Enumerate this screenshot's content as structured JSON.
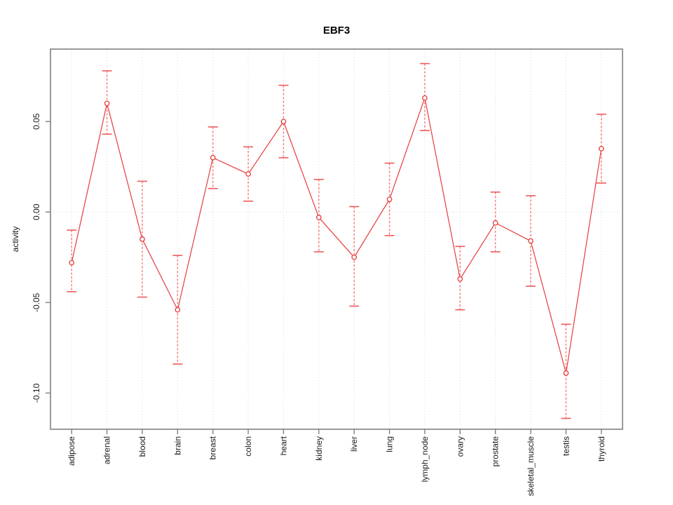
{
  "chart_data": {
    "type": "line",
    "title": "EBF3",
    "xlabel": "",
    "ylabel": "activity",
    "categories": [
      "adipose",
      "adrenal",
      "blood",
      "brain",
      "breast",
      "colon",
      "heart",
      "kidney",
      "liver",
      "lung",
      "lymph_node",
      "ovary",
      "prostate",
      "skeletal_muscle",
      "testis",
      "thyroid"
    ],
    "series": [
      {
        "name": "EBF3 activity",
        "values": [
          -0.028,
          0.06,
          -0.015,
          -0.054,
          0.03,
          0.021,
          0.05,
          -0.003,
          -0.025,
          0.007,
          0.063,
          -0.037,
          -0.006,
          -0.016,
          -0.089,
          0.035
        ],
        "ci_lower": [
          -0.044,
          0.043,
          -0.047,
          -0.084,
          0.013,
          0.006,
          0.03,
          -0.022,
          -0.052,
          -0.013,
          0.045,
          -0.054,
          -0.022,
          -0.041,
          -0.114,
          0.016
        ],
        "ci_upper": [
          -0.01,
          0.078,
          0.017,
          -0.024,
          0.047,
          0.036,
          0.07,
          0.018,
          0.003,
          0.027,
          0.082,
          -0.019,
          0.011,
          0.009,
          -0.062,
          0.054
        ]
      }
    ],
    "yticks": [
      0.05,
      0.0,
      -0.05,
      -0.1
    ],
    "ytick_labels": [
      "0.05",
      "0.00",
      "-0.05",
      "-0.10"
    ],
    "ylim": [
      -0.12,
      0.09
    ],
    "grid": {
      "vertical_dotted_per_category": true,
      "horizontal_dotted_at_zero": true
    },
    "legend": "none",
    "marker": "open-circle",
    "error_bars": true,
    "colors": {
      "series": "#e73c3c",
      "error_bar": "#f58080",
      "error_bar_cap": "#ef5a5a",
      "grid": "#d9d9d9",
      "axis": "#808080",
      "tick_text": "#1a1a1a",
      "title_text": "#000000",
      "background": "#ffffff"
    }
  }
}
